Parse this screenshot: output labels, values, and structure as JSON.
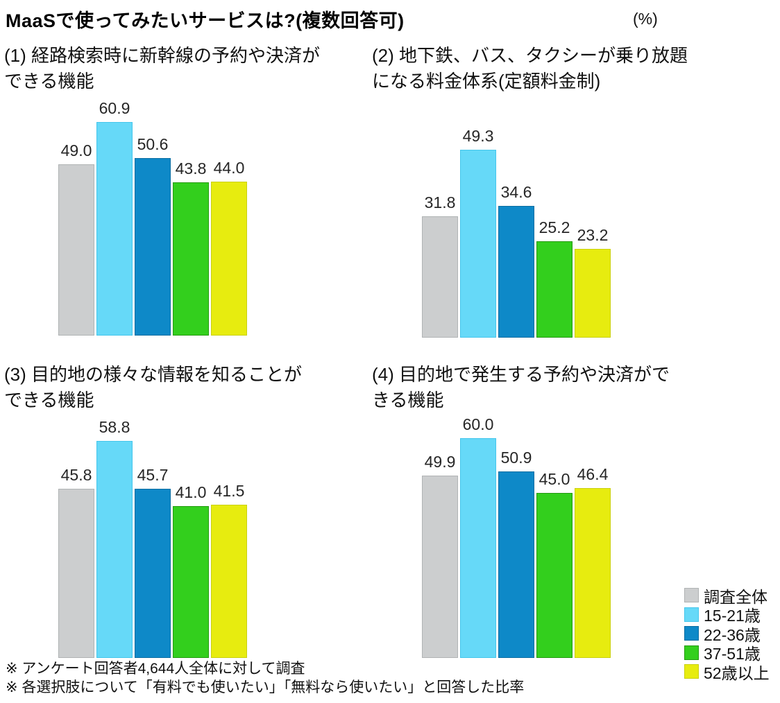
{
  "page": {
    "title": "MaaSで使ってみたいサービスは?(複数回答可)",
    "unit_label": "(%)"
  },
  "palette": {
    "series_fill": [
      "#cccecf",
      "#66d9f8",
      "#0e89c8",
      "#33cf1d",
      "#e7ec0f"
    ],
    "series_border": [
      "#b0b3b4",
      "#44c6ec",
      "#0b6da1",
      "#249a10",
      "#c9d00e"
    ],
    "text": "#111111"
  },
  "legend": {
    "items": [
      {
        "label": "調査全体"
      },
      {
        "label": "15-21歳"
      },
      {
        "label": "22-36歳"
      },
      {
        "label": "37-51歳"
      },
      {
        "label": "52歳以上"
      }
    ]
  },
  "chart_data": [
    {
      "type": "bar",
      "title": "(1) 経路検索時に新幹線の予約や決済ができる機能",
      "title_lines": [
        "(1) 経路検索時に新幹線の予約や決済が",
        "できる機能"
      ],
      "categories": [
        "調査全体",
        "15-21歳",
        "22-36歳",
        "37-51歳",
        "52歳以上"
      ],
      "values": [
        49.0,
        60.9,
        50.6,
        43.8,
        44.0
      ],
      "unit": "%",
      "ylim": [
        0,
        65
      ],
      "grid": false,
      "value_labels": true,
      "legend_position": "bottom-right-shared"
    },
    {
      "type": "bar",
      "title": "(2) 地下鉄、バス、タクシーが乗り放題になる料金体系(定額料金制)",
      "title_lines": [
        "(2) 地下鉄、バス、タクシーが乗り放題",
        "になる料金体系(定額料金制)"
      ],
      "categories": [
        "調査全体",
        "15-21歳",
        "22-36歳",
        "37-51歳",
        "52歳以上"
      ],
      "values": [
        31.8,
        49.3,
        34.6,
        25.2,
        23.2
      ],
      "unit": "%",
      "ylim": [
        0,
        65
      ],
      "grid": false,
      "value_labels": true,
      "legend_position": "bottom-right-shared"
    },
    {
      "type": "bar",
      "title": "(3) 目的地の様々な情報を知ることができる機能",
      "title_lines": [
        "(3) 目的地の様々な情報を知ることが",
        "できる機能"
      ],
      "categories": [
        "調査全体",
        "15-21歳",
        "22-36歳",
        "37-51歳",
        "52歳以上"
      ],
      "values": [
        45.8,
        58.8,
        45.7,
        41.0,
        41.5
      ],
      "unit": "%",
      "ylim": [
        0,
        65
      ],
      "grid": false,
      "value_labels": true,
      "legend_position": "bottom-right-shared"
    },
    {
      "type": "bar",
      "title": "(4) 目的地で発生する予約や決済ができる機能",
      "title_lines": [
        "(4) 目的地で発生する予約や決済がで",
        "きる機能"
      ],
      "categories": [
        "調査全体",
        "15-21歳",
        "22-36歳",
        "37-51歳",
        "52歳以上"
      ],
      "values": [
        49.9,
        60.0,
        50.9,
        45.0,
        46.4
      ],
      "unit": "%",
      "ylim": [
        0,
        65
      ],
      "grid": false,
      "value_labels": true,
      "legend_position": "bottom-right-shared"
    }
  ],
  "footnotes": [
    "※ アンケート回答者4,644人全体に対して調査",
    "※ 各選択肢について「有料でも使いたい」「無料なら使いたい」と回答した比率"
  ]
}
